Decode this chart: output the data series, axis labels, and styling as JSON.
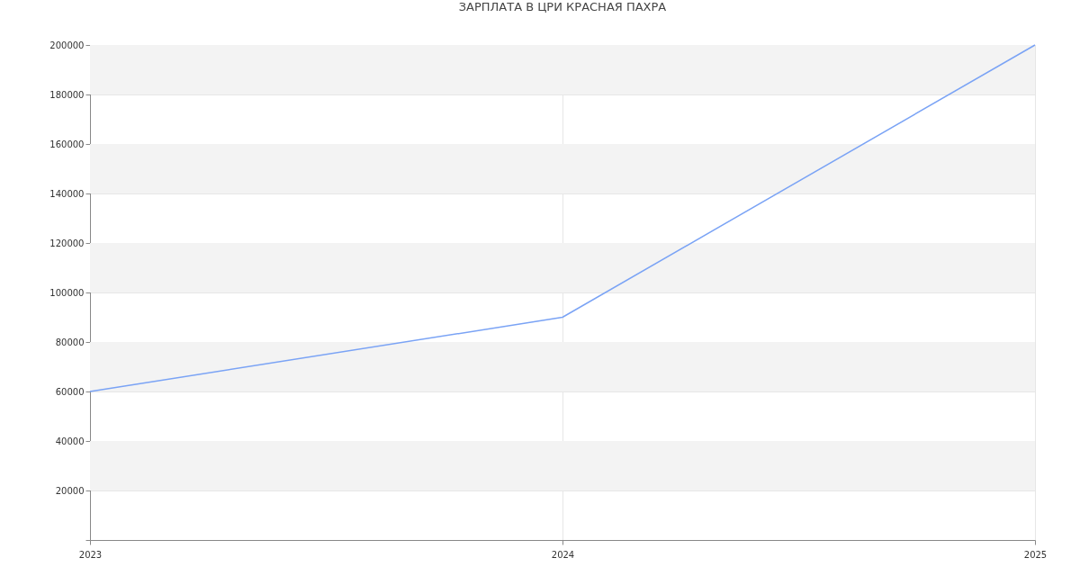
{
  "chart_data": {
    "type": "line",
    "title": "ЗАРПЛАТА В ЦРИ КРАСНАЯ ПАХРА",
    "x": [
      2023,
      2024,
      2025
    ],
    "series": [
      {
        "color": "#7aa3f5",
        "values": [
          60000,
          90000,
          200000
        ]
      }
    ],
    "xlim": [
      2023,
      2025
    ],
    "xticks": [
      2023,
      2024,
      2025
    ],
    "ylim": [
      0,
      200000
    ],
    "yticks": [
      {
        "value": 0,
        "label": null
      },
      20000,
      40000,
      60000,
      80000,
      100000,
      120000,
      140000,
      160000,
      180000,
      200000
    ],
    "bands": [
      {
        "axis": "y",
        "from": 20000,
        "to": 40000,
        "color": "#f3f3f3"
      },
      {
        "axis": "y",
        "from": 60000,
        "to": 80000,
        "color": "#f3f3f3"
      },
      {
        "axis": "y",
        "from": 100000,
        "to": 120000,
        "color": "#f3f3f3"
      },
      {
        "axis": "y",
        "from": 140000,
        "to": 160000,
        "color": "#f3f3f3"
      },
      {
        "axis": "y",
        "from": 180000,
        "to": 200000,
        "color": "#f3f3f3"
      }
    ],
    "grid": true,
    "marker": "none",
    "line_style": "solid"
  }
}
